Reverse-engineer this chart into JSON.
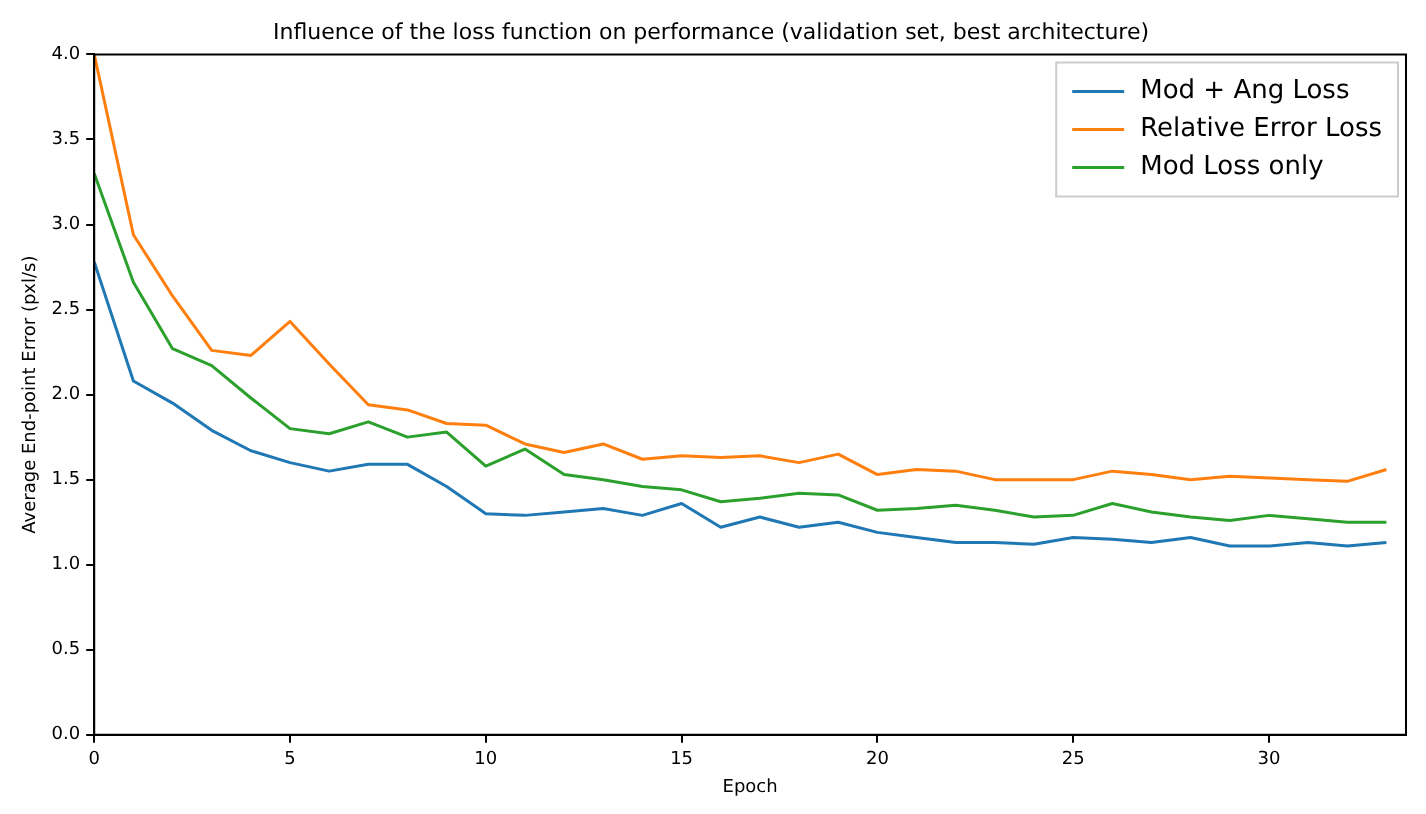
{
  "chart_data": {
    "type": "line",
    "title": "Influence of the loss function on performance (validation set, best architecture)",
    "xlabel": "Epoch",
    "ylabel": "Average End-point Error (pxl/s)",
    "x": [
      0,
      1,
      2,
      3,
      4,
      5,
      6,
      7,
      8,
      9,
      10,
      11,
      12,
      13,
      14,
      15,
      16,
      17,
      18,
      19,
      20,
      21,
      22,
      23,
      24,
      25,
      26,
      27,
      28,
      29,
      30,
      31,
      32,
      33
    ],
    "series": [
      {
        "name": "Mod + Ang Loss",
        "color": "#1f77b4",
        "values": [
          2.78,
          2.08,
          1.95,
          1.79,
          1.67,
          1.6,
          1.55,
          1.59,
          1.59,
          1.46,
          1.3,
          1.29,
          1.31,
          1.33,
          1.29,
          1.36,
          1.22,
          1.28,
          1.22,
          1.25,
          1.19,
          1.16,
          1.13,
          1.13,
          1.12,
          1.16,
          1.15,
          1.13,
          1.16,
          1.11,
          1.11,
          1.13,
          1.11,
          1.13
        ]
      },
      {
        "name": "Relative Error Loss",
        "color": "#ff7f0e",
        "values": [
          4.0,
          2.94,
          2.58,
          2.26,
          2.23,
          2.43,
          2.18,
          1.94,
          1.91,
          1.83,
          1.82,
          1.71,
          1.66,
          1.71,
          1.62,
          1.64,
          1.63,
          1.64,
          1.6,
          1.65,
          1.53,
          1.56,
          1.55,
          1.5,
          1.5,
          1.5,
          1.55,
          1.53,
          1.5,
          1.52,
          1.51,
          1.5,
          1.49,
          1.56
        ]
      },
      {
        "name": "Mod Loss only",
        "color": "#2ca02c",
        "values": [
          3.3,
          2.66,
          2.27,
          2.17,
          1.98,
          1.8,
          1.77,
          1.84,
          1.75,
          1.78,
          1.58,
          1.68,
          1.53,
          1.5,
          1.46,
          1.44,
          1.37,
          1.39,
          1.42,
          1.41,
          1.32,
          1.33,
          1.35,
          1.32,
          1.28,
          1.29,
          1.36,
          1.31,
          1.28,
          1.26,
          1.29,
          1.27,
          1.25,
          1.25
        ]
      }
    ],
    "xlim": [
      0,
      33.5
    ],
    "xticks": [
      0,
      5,
      10,
      15,
      20,
      25,
      30
    ],
    "ylim": [
      0,
      4
    ],
    "yticks": [
      {
        "value": 0,
        "label": "0.0"
      },
      {
        "value": 0.5,
        "label": "0.5"
      },
      {
        "value": 1,
        "label": "1.0"
      },
      {
        "value": 1.5,
        "label": "1.5"
      },
      {
        "value": 2,
        "label": "2.0"
      },
      {
        "value": 2.5,
        "label": "2.5"
      },
      {
        "value": 3,
        "label": "3.0"
      },
      {
        "value": 3.5,
        "label": "3.5"
      },
      {
        "value": 4,
        "label": "4.0"
      }
    ],
    "grid": false,
    "legend": "top right",
    "marker": "none",
    "line_style": "solid"
  }
}
